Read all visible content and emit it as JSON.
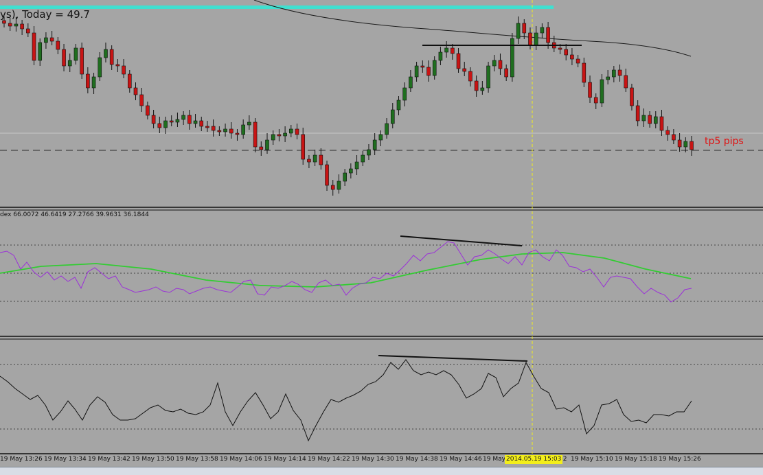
{
  "header": {
    "title_text": "ys),   Today = 49.7"
  },
  "indicator": {
    "values_text": "dex 66.0072 46.6419 27.2766 39.9631 36.1844"
  },
  "annotations": {
    "tp_label": "tp5 pips"
  },
  "cursor": {
    "time_badge": "2014.05.19 15:03"
  },
  "time_axis": [
    "19 May 13:26",
    "19 May 13:34",
    "19 May 13:42",
    "19 May 13:50",
    "19 May 13:58",
    "19 May 14:06",
    "19 May 14:14",
    "19 May 14:22",
    "19 May 14:30",
    "19 May 14:38",
    "19 May 14:46",
    "19 May",
    "02",
    "19 May 15:10",
    "19 May 15:18",
    "19 May 15:26"
  ],
  "colors": {
    "background": "#a5a5a5",
    "bull_candle": "#1f6e1f",
    "bear_candle": "#c81414",
    "ma_line": "#1a1a1a",
    "indicator_main": "#9b30d9",
    "indicator_signal": "#33cc33",
    "oscillator": "#111111",
    "cursor_line": "#f3ee1a",
    "top_band": "#40e0d0",
    "tp_label": "#e01010"
  }
}
